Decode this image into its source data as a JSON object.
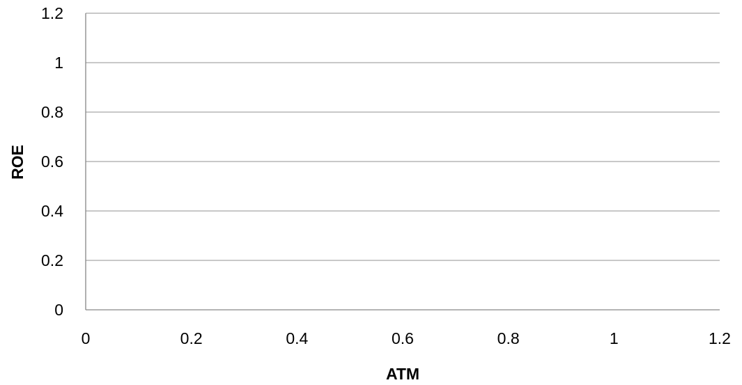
{
  "chart_data": {
    "type": "scatter",
    "title": "",
    "xlabel": "ATM",
    "ylabel": "ROE",
    "xlim": [
      0,
      1.2
    ],
    "ylim": [
      0,
      1.2
    ],
    "x_ticks": [
      "0",
      "0.2",
      "0.4",
      "0.6",
      "0.8",
      "1",
      "1.2"
    ],
    "y_ticks": [
      "0",
      "0.2",
      "0.4",
      "0.6",
      "0.8",
      "1",
      "1.2"
    ],
    "grid": "horizontal",
    "legend": "none",
    "series": [],
    "colors": {
      "gridline": "#a6a6a6",
      "axis": "#868686",
      "text": "#000000"
    }
  }
}
